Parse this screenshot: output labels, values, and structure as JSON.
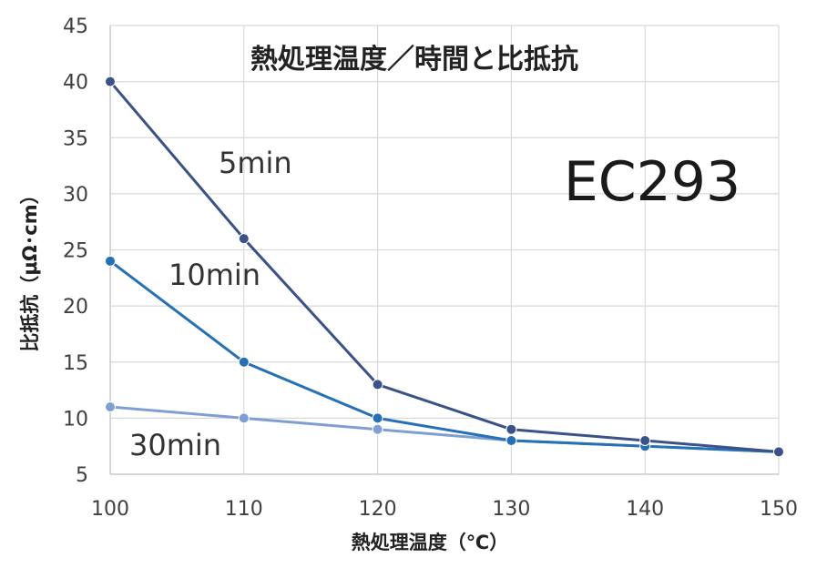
{
  "chart_data": {
    "type": "line",
    "title": "熱処理温度／時間と比抵抗",
    "xlabel": "熱処理温度（℃）",
    "ylabel": "比抵抗（μΩ･cm）",
    "x": [
      100,
      110,
      120,
      130,
      140,
      150
    ],
    "xlim": [
      100,
      150
    ],
    "ylim": [
      5,
      45
    ],
    "x_ticks": [
      100,
      110,
      120,
      130,
      140,
      150
    ],
    "y_ticks": [
      5,
      10,
      15,
      20,
      25,
      30,
      35,
      40,
      45
    ],
    "grid": true,
    "series": [
      {
        "name": "5min",
        "values": [
          40,
          26,
          13,
          9,
          8,
          7
        ],
        "color": "#3a5288"
      },
      {
        "name": "10min",
        "values": [
          24,
          15,
          10,
          8,
          7.5,
          7
        ],
        "color": "#2670b5"
      },
      {
        "name": "30min",
        "values": [
          11,
          10,
          9,
          8,
          7.5,
          7
        ],
        "color": "#7f9fd3"
      }
    ],
    "annotations": [
      {
        "text": "EC293"
      }
    ]
  }
}
